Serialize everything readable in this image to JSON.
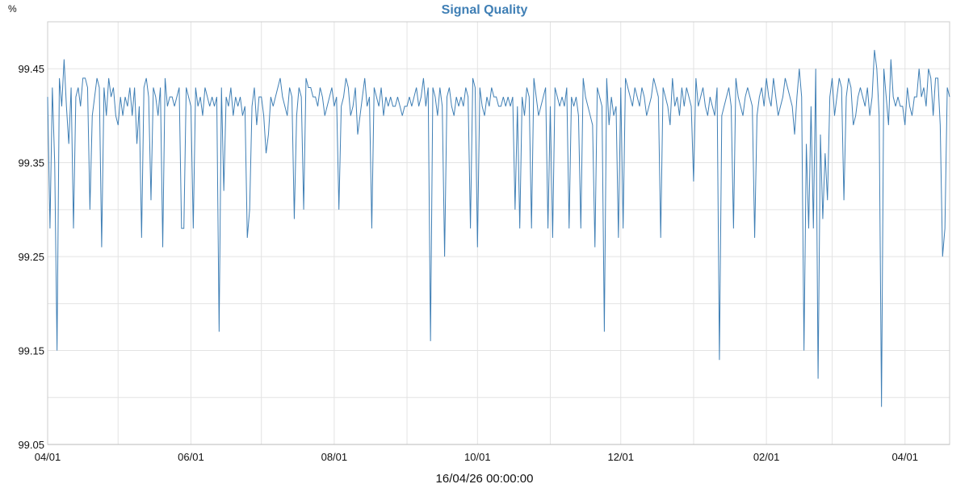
{
  "chart_data": {
    "type": "line",
    "title": "Signal Quality",
    "ylabel": "%",
    "xlabel": "16/04/26 00:00:00",
    "ylim": [
      99.05,
      99.5
    ],
    "yticks": [
      99.05,
      99.15,
      99.25,
      99.35,
      99.45
    ],
    "ytick_labels": [
      "99.05",
      "99.15",
      "99.25",
      "99.35",
      "99.45"
    ],
    "xlim": [
      "2025-04-01",
      "2026-04-20"
    ],
    "xticks": [
      "2025-04-01",
      "2025-06-01",
      "2025-08-01",
      "2025-10-01",
      "2025-12-01",
      "2026-02-01",
      "2026-04-01"
    ],
    "xtick_labels": [
      "04/01",
      "06/01",
      "08/01",
      "10/01",
      "12/01",
      "02/01",
      "04/01"
    ],
    "xgrid_minor": [
      "2025-05-01",
      "2025-07-01",
      "2025-09-01",
      "2025-11-01",
      "2026-01-01",
      "2026-03-01"
    ],
    "grid": true,
    "colors": {
      "line": "#3f7fb5",
      "title": "#3f7fb5",
      "grid": "#e3e3e3",
      "axis": "#cccccc"
    },
    "series": [
      {
        "x_start": "2025-04-01",
        "x_step_days": 1,
        "values": [
          99.42,
          99.28,
          99.43,
          99.35,
          99.15,
          99.44,
          99.41,
          99.46,
          99.41,
          99.37,
          99.43,
          99.28,
          99.42,
          99.43,
          99.41,
          99.44,
          99.44,
          99.43,
          99.3,
          99.4,
          99.42,
          99.44,
          99.43,
          99.26,
          99.43,
          99.4,
          99.44,
          99.42,
          99.43,
          99.4,
          99.39,
          99.42,
          99.4,
          99.42,
          99.41,
          99.43,
          99.4,
          99.43,
          99.37,
          99.41,
          99.27,
          99.43,
          99.44,
          99.42,
          99.31,
          99.43,
          99.42,
          99.4,
          99.43,
          99.26,
          99.44,
          99.41,
          99.42,
          99.42,
          99.41,
          99.42,
          99.43,
          99.28,
          99.28,
          99.43,
          99.42,
          99.41,
          99.28,
          99.43,
          99.41,
          99.42,
          99.4,
          99.43,
          99.42,
          99.41,
          99.42,
          99.41,
          99.42,
          99.17,
          99.43,
          99.32,
          99.42,
          99.41,
          99.43,
          99.4,
          99.42,
          99.41,
          99.42,
          99.4,
          99.41,
          99.27,
          99.3,
          99.41,
          99.43,
          99.39,
          99.42,
          99.42,
          99.4,
          99.36,
          99.38,
          99.42,
          99.41,
          99.42,
          99.43,
          99.44,
          99.42,
          99.41,
          99.4,
          99.43,
          99.42,
          99.29,
          99.4,
          99.43,
          99.42,
          99.3,
          99.44,
          99.43,
          99.43,
          99.42,
          99.42,
          99.41,
          99.43,
          99.42,
          99.4,
          99.41,
          99.42,
          99.43,
          99.41,
          99.42,
          99.3,
          99.41,
          99.42,
          99.44,
          99.43,
          99.4,
          99.41,
          99.43,
          99.38,
          99.4,
          99.42,
          99.44,
          99.41,
          99.42,
          99.28,
          99.43,
          99.42,
          99.41,
          99.43,
          99.4,
          99.42,
          99.41,
          99.42,
          99.41,
          99.41,
          99.42,
          99.41,
          99.4,
          99.41,
          99.41,
          99.42,
          99.41,
          99.42,
          99.43,
          99.41,
          99.42,
          99.44,
          99.41,
          99.43,
          99.16,
          99.43,
          99.42,
          99.4,
          99.43,
          99.41,
          99.25,
          99.42,
          99.43,
          99.41,
          99.4,
          99.42,
          99.41,
          99.42,
          99.41,
          99.43,
          99.42,
          99.28,
          99.44,
          99.43,
          99.26,
          99.43,
          99.41,
          99.4,
          99.42,
          99.41,
          99.43,
          99.42,
          99.42,
          99.41,
          99.41,
          99.42,
          99.41,
          99.42,
          99.41,
          99.42,
          99.3,
          99.41,
          99.28,
          99.42,
          99.4,
          99.43,
          99.42,
          99.28,
          99.44,
          99.42,
          99.4,
          99.41,
          99.42,
          99.43,
          99.28,
          99.41,
          99.27,
          99.43,
          99.42,
          99.41,
          99.42,
          99.41,
          99.43,
          99.28,
          99.42,
          99.41,
          99.42,
          99.4,
          99.28,
          99.44,
          99.42,
          99.41,
          99.4,
          99.39,
          99.26,
          99.43,
          99.42,
          99.41,
          99.17,
          99.44,
          99.39,
          99.42,
          99.4,
          99.41,
          99.27,
          99.43,
          99.28,
          99.44,
          99.43,
          99.42,
          99.41,
          99.43,
          99.42,
          99.41,
          99.43,
          99.42,
          99.4,
          99.41,
          99.42,
          99.44,
          99.43,
          99.42,
          99.27,
          99.43,
          99.42,
          99.41,
          99.39,
          99.44,
          99.41,
          99.42,
          99.4,
          99.43,
          99.41,
          99.43,
          99.42,
          99.41,
          99.33,
          99.44,
          99.41,
          99.42,
          99.43,
          99.41,
          99.4,
          99.42,
          99.41,
          99.4,
          99.43,
          99.14,
          99.4,
          99.41,
          99.42,
          99.43,
          99.41,
          99.28,
          99.44,
          99.42,
          99.41,
          99.4,
          99.42,
          99.43,
          99.42,
          99.41,
          99.27,
          99.4,
          99.42,
          99.43,
          99.41,
          99.44,
          99.42,
          99.41,
          99.44,
          99.42,
          99.4,
          99.41,
          99.42,
          99.44,
          99.43,
          99.42,
          99.41,
          99.38,
          99.42,
          99.45,
          99.42,
          99.15,
          99.37,
          99.28,
          99.41,
          99.28,
          99.45,
          99.12,
          99.38,
          99.29,
          99.36,
          99.31,
          99.42,
          99.44,
          99.4,
          99.42,
          99.44,
          99.43,
          99.31,
          99.42,
          99.44,
          99.43,
          99.39,
          99.4,
          99.42,
          99.43,
          99.42,
          99.41,
          99.43,
          99.4,
          99.42,
          99.47,
          99.45,
          99.4,
          99.09,
          99.45,
          99.42,
          99.39,
          99.46,
          99.42,
          99.41,
          99.42,
          99.41,
          99.41,
          99.39,
          99.43,
          99.41,
          99.4,
          99.42,
          99.42,
          99.45,
          99.42,
          99.43,
          99.41,
          99.45,
          99.44,
          99.4,
          99.44,
          99.44,
          99.39,
          99.25,
          99.28,
          99.43,
          99.42
        ]
      }
    ]
  }
}
